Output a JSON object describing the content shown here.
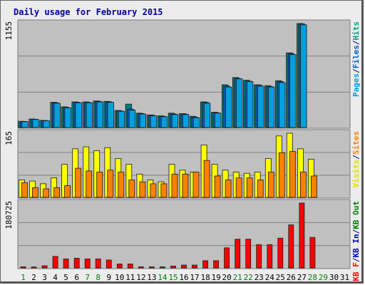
{
  "chart_data": {
    "type": "bar",
    "title": "Daily usage for February 2015",
    "x": [
      "1",
      "2",
      "3",
      "4",
      "5",
      "6",
      "7",
      "8",
      "9",
      "10",
      "11",
      "12",
      "13",
      "14",
      "15",
      "16",
      "17",
      "18",
      "19",
      "20",
      "21",
      "22",
      "23",
      "24",
      "25",
      "26",
      "27",
      "28",
      "29",
      "30",
      "31"
    ],
    "weekend_days": [
      "1",
      "7",
      "8",
      "14",
      "15",
      "21",
      "22",
      "28",
      "29"
    ],
    "panels": [
      {
        "name": "hits",
        "max_label": "1155",
        "ymax": 1155,
        "axis_labels": [
          {
            "text": "Pages",
            "color": "#00a0e0"
          },
          {
            "text": "/",
            "color": "#0000a0"
          },
          {
            "text": "Files",
            "color": "#0060c0"
          },
          {
            "text": "/",
            "color": "#0000a0"
          },
          {
            "text": "Hits",
            "color": "#00a080"
          }
        ],
        "series": [
          {
            "name": "Hits",
            "color": "#008080",
            "values": [
              70,
              95,
              80,
              280,
              230,
              285,
              285,
              295,
              290,
              190,
              260,
              160,
              140,
              130,
              160,
              155,
              125,
              285,
              170,
              475,
              555,
              525,
              475,
              465,
              520,
              830,
              1155,
              0,
              0,
              0,
              0
            ]
          },
          {
            "name": "Files",
            "color": "#0060c0",
            "values": [
              68,
              92,
              78,
              275,
              225,
              280,
              280,
              290,
              285,
              185,
              205,
              155,
              135,
              125,
              150,
              150,
              115,
              280,
              165,
              460,
              545,
              515,
              470,
              455,
              510,
              820,
              1150,
              0,
              0,
              0,
              0
            ]
          },
          {
            "name": "Pages",
            "color": "#00a0e0",
            "values": [
              65,
              90,
              75,
              270,
              220,
              275,
              275,
              285,
              280,
              180,
              195,
              150,
              130,
              120,
              145,
              145,
              110,
              270,
              160,
              450,
              540,
              510,
              460,
              450,
              500,
              810,
              1140,
              0,
              0,
              0,
              0
            ]
          }
        ]
      },
      {
        "name": "visits",
        "max_label": "165",
        "ymax": 165,
        "axis_labels": [
          {
            "text": "Visits",
            "color": "#e0e000"
          },
          {
            "text": "/",
            "color": "#0000a0"
          },
          {
            "text": "Sites",
            "color": "#ff8000"
          }
        ],
        "series": [
          {
            "name": "Visits",
            "color": "#ffff00",
            "values": [
              45,
              42,
              35,
              50,
              85,
              125,
              130,
              120,
              128,
              100,
              85,
              60,
              45,
              40,
              85,
              70,
              65,
              135,
              85,
              70,
              65,
              62,
              65,
              100,
              158,
              165,
              125,
              98,
              0,
              0,
              0
            ]
          },
          {
            "name": "Sites",
            "color": "#ff8000",
            "values": [
              38,
              25,
              22,
              25,
              30,
              75,
              68,
              65,
              70,
              65,
              45,
              40,
              35,
              35,
              60,
              60,
              65,
              95,
              55,
              45,
              50,
              50,
              45,
              65,
              115,
              118,
              65,
              55,
              0,
              0,
              0
            ]
          }
        ]
      },
      {
        "name": "kbytes",
        "max_label": "180725",
        "ymax": 180725,
        "axis_labels": [
          {
            "text": "KB F",
            "color": "#ff0000"
          },
          {
            "text": "/",
            "color": "#0000a0"
          },
          {
            "text": "KB In",
            "color": "#0000c0"
          },
          {
            "text": "/",
            "color": "#0000a0"
          },
          {
            "text": "KB Out",
            "color": "#008000"
          }
        ],
        "series": [
          {
            "name": "KB F",
            "color": "#ff0000",
            "values": [
              3000,
              2500,
              6000,
              32000,
              25000,
              27000,
              25000,
              25000,
              22000,
              11000,
              11000,
              3000,
              3000,
              3000,
              5000,
              8000,
              8000,
              20000,
              20000,
              56000,
              80000,
              80000,
              65000,
              65000,
              83000,
              120000,
              180725,
              85000,
              0,
              0,
              0
            ]
          }
        ]
      }
    ]
  }
}
